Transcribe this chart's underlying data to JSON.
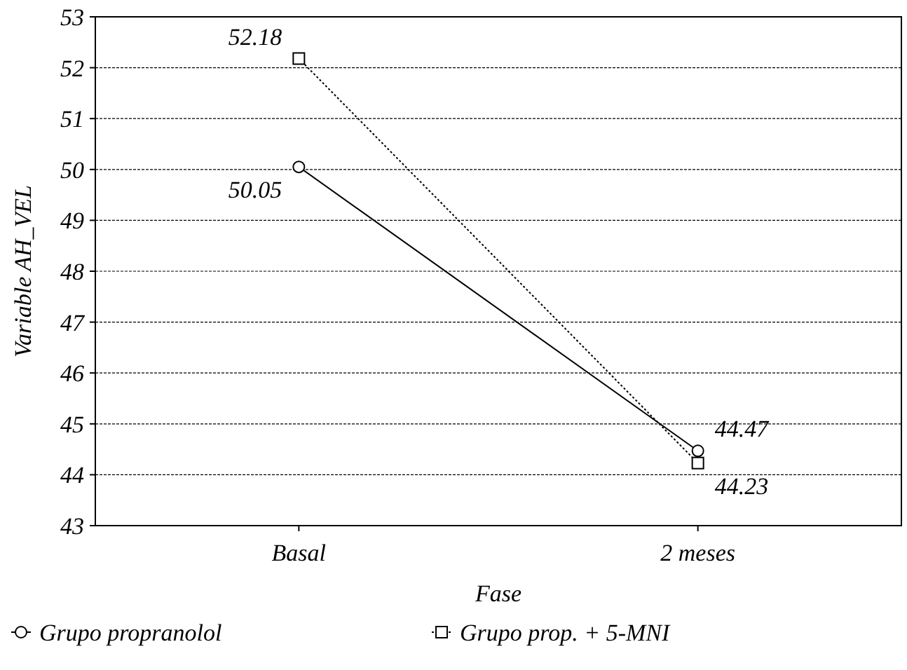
{
  "chart_data": {
    "type": "line",
    "xlabel": "Fase",
    "ylabel": "Variable AH_VEL",
    "categories": [
      "Basal",
      "2 meses"
    ],
    "series": [
      {
        "name": "Grupo propranolol",
        "color": "#000000",
        "values": [
          50.05,
          44.47
        ],
        "marker": "circle",
        "line_style": "solid"
      },
      {
        "name": "Grupo prop. + 5-MNI",
        "color": "#000000",
        "values": [
          52.18,
          44.23
        ],
        "marker": "square",
        "line_style": "dotted"
      }
    ],
    "ylim": [
      43,
      53
    ],
    "yticks": [
      43,
      44,
      45,
      46,
      47,
      48,
      49,
      50,
      51,
      52,
      53
    ],
    "grid": "y",
    "legend": "bottom",
    "data_labels": true
  }
}
